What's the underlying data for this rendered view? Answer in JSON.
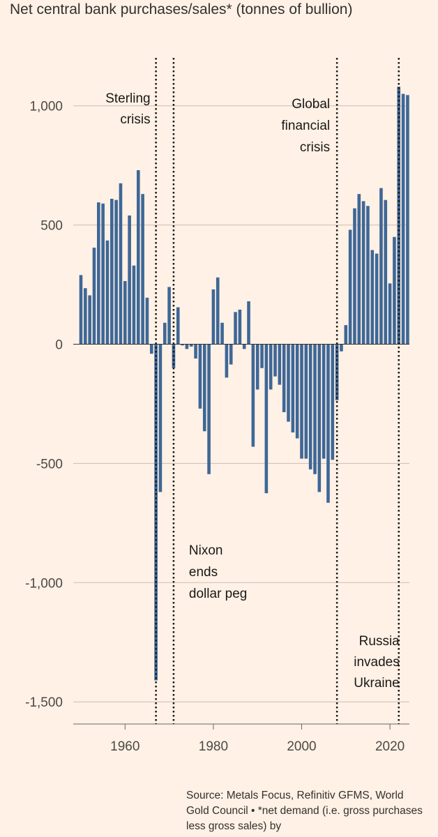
{
  "chart_data": {
    "type": "bar",
    "title": "Net central bank purchases/sales* (tonnes of bullion)",
    "xlabel": "",
    "ylabel": "",
    "ylim": [
      -1600,
      1200
    ],
    "xlim": [
      1949,
      2025
    ],
    "yticks": [
      1000,
      500,
      0,
      -500,
      -1000,
      -1500
    ],
    "ytick_labels": [
      "1,000",
      "500",
      "0",
      "-500",
      "-1,000",
      "-1,500"
    ],
    "xticks": [
      1960,
      1980,
      2000,
      2020
    ],
    "xtick_labels": [
      "1960",
      "1980",
      "2000",
      "2020"
    ],
    "grid": true,
    "bar_color": "#3e6796",
    "years": [
      1950,
      1951,
      1952,
      1953,
      1954,
      1955,
      1956,
      1957,
      1958,
      1959,
      1960,
      1961,
      1962,
      1963,
      1964,
      1965,
      1966,
      1967,
      1968,
      1969,
      1970,
      1971,
      1972,
      1973,
      1974,
      1975,
      1976,
      1977,
      1978,
      1979,
      1980,
      1981,
      1982,
      1983,
      1984,
      1985,
      1986,
      1987,
      1988,
      1989,
      1990,
      1991,
      1992,
      1993,
      1994,
      1995,
      1996,
      1997,
      1998,
      1999,
      2000,
      2001,
      2002,
      2003,
      2004,
      2005,
      2006,
      2007,
      2008,
      2009,
      2010,
      2011,
      2012,
      2013,
      2014,
      2015,
      2016,
      2017,
      2018,
      2019,
      2020,
      2021,
      2022,
      2023,
      2024
    ],
    "values": [
      290,
      235,
      205,
      405,
      595,
      590,
      435,
      610,
      605,
      675,
      265,
      540,
      330,
      730,
      630,
      195,
      -40,
      -1410,
      -620,
      90,
      240,
      -100,
      155,
      -5,
      -20,
      -10,
      -60,
      -270,
      -365,
      -545,
      230,
      280,
      90,
      -140,
      -85,
      135,
      145,
      -20,
      180,
      -430,
      -190,
      -100,
      -625,
      -190,
      -135,
      -170,
      -285,
      -325,
      -370,
      -395,
      -480,
      -480,
      -525,
      -545,
      -620,
      -480,
      -665,
      -485,
      -235,
      -30,
      80,
      480,
      570,
      630,
      600,
      580,
      395,
      380,
      655,
      605,
      255,
      450,
      1080,
      1050,
      1045
    ],
    "annotations": [
      {
        "x": 1967,
        "lines": [
          "Sterling",
          "crisis"
        ]
      },
      {
        "x": 1971,
        "lines": [
          "Nixon",
          "ends",
          "dollar peg"
        ]
      },
      {
        "x": 2008,
        "lines": [
          "Global",
          "financial",
          "crisis"
        ]
      },
      {
        "x": 2022,
        "lines": [
          "Russia",
          "invades",
          "Ukraine"
        ]
      }
    ]
  },
  "source": "Source: Metals Focus, Refinitiv GFMS, World Gold Council • *net demand (i.e. gross purchases less gross sales) by"
}
